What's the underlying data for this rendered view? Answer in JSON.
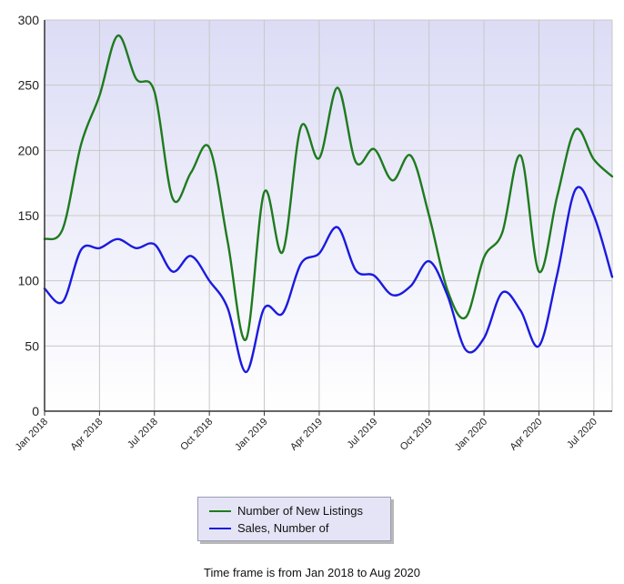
{
  "chart_data": {
    "type": "line",
    "x": [
      "Jan 2018",
      "Feb 2018",
      "Mar 2018",
      "Apr 2018",
      "May 2018",
      "Jun 2018",
      "Jul 2018",
      "Aug 2018",
      "Sep 2018",
      "Oct 2018",
      "Nov 2018",
      "Dec 2018",
      "Jan 2019",
      "Feb 2019",
      "Mar 2019",
      "Apr 2019",
      "May 2019",
      "Jun 2019",
      "Jul 2019",
      "Aug 2019",
      "Sep 2019",
      "Oct 2019",
      "Nov 2019",
      "Dec 2019",
      "Jan 2020",
      "Feb 2020",
      "Mar 2020",
      "Apr 2020",
      "May 2020",
      "Jun 2020",
      "Jul 2020",
      "Aug 2020"
    ],
    "x_tick_labels": [
      "Jan 2018",
      "Apr 2018",
      "Jul 2018",
      "Oct 2018",
      "Jan 2019",
      "Apr 2019",
      "Jul 2019",
      "Oct 2019",
      "Jan 2020",
      "Apr 2020",
      "Jul 2020"
    ],
    "series": [
      {
        "name": "Number of New Listings",
        "color": "#1e7b1e",
        "values": [
          132,
          140,
          205,
          242,
          288,
          255,
          245,
          163,
          183,
          202,
          130,
          55,
          168,
          122,
          218,
          194,
          248,
          191,
          201,
          177,
          196,
          150,
          93,
          72,
          118,
          137,
          196,
          107,
          165,
          216,
          193,
          180
        ]
      },
      {
        "name": "Sales, Number of",
        "color": "#1a1ae0",
        "values": [
          94,
          84,
          124,
          125,
          132,
          125,
          128,
          107,
          119,
          100,
          79,
          30,
          79,
          75,
          113,
          121,
          141,
          108,
          104,
          89,
          96,
          115,
          89,
          47,
          56,
          91,
          77,
          50,
          105,
          170,
          150,
          103
        ]
      }
    ],
    "ylim": [
      0,
      300
    ],
    "y_ticks": [
      0,
      50,
      100,
      150,
      200,
      250,
      300
    ],
    "grid": true,
    "legend_position": "bottom-center"
  },
  "caption": "Time frame is from Jan 2018 to Aug 2020"
}
